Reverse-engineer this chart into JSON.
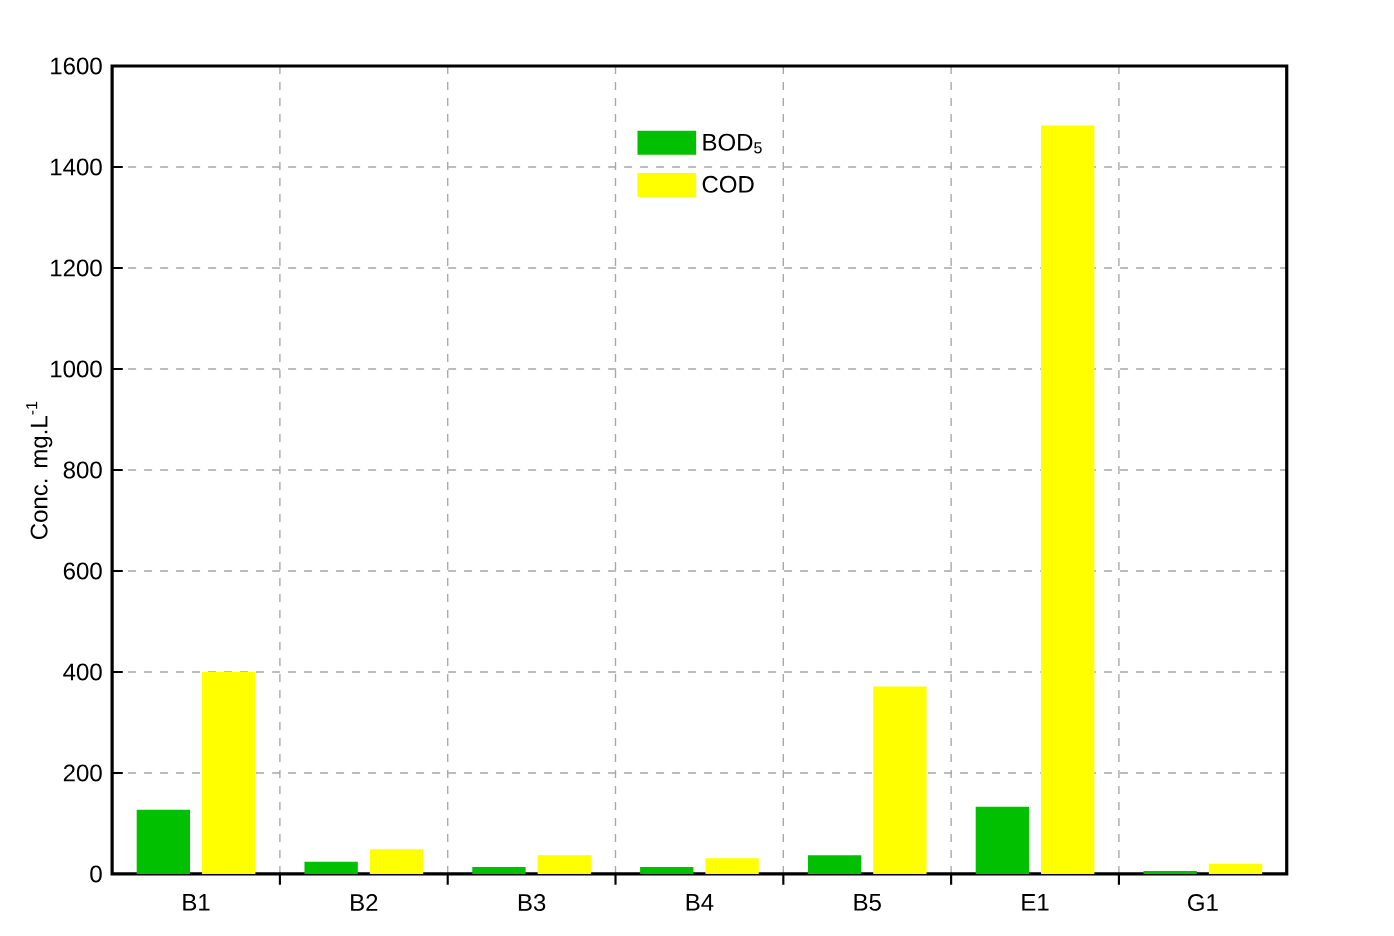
{
  "chart_data": {
    "type": "bar",
    "ylabel": "Conc. mg.L$^{-1}$",
    "categories": [
      "B1",
      "B2",
      "B3",
      "B4",
      "B5",
      "E1",
      "G1"
    ],
    "series": [
      {
        "name": "BOD$_{5}$",
        "color": "#00c000",
        "values": [
          127,
          24,
          14,
          14,
          37,
          133,
          6
        ]
      },
      {
        "name": "COD",
        "color": "#ffff00",
        "values": [
          400,
          49,
          37,
          31,
          371,
          1482,
          20
        ]
      }
    ],
    "ylim": [
      0,
      1600
    ],
    "yticks": [
      0,
      200,
      400,
      600,
      800,
      1000,
      1200,
      1400,
      1600
    ],
    "grid": true,
    "legend": "top"
  }
}
